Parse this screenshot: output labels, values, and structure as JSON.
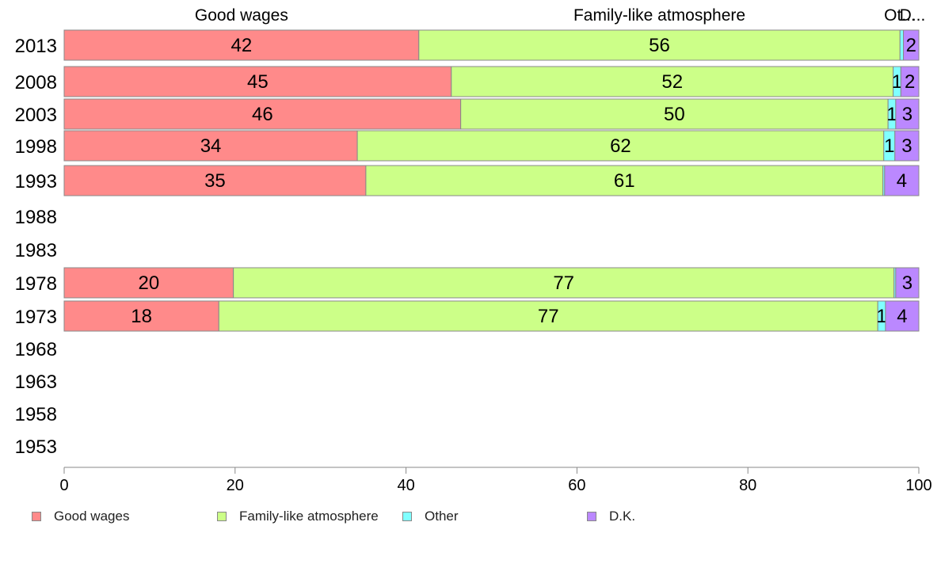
{
  "chart_data": {
    "type": "bar",
    "orientation": "horizontal",
    "stacked": true,
    "categories": [
      "2013",
      "2008",
      "2003",
      "1998",
      "1993",
      "1988",
      "1983",
      "1978",
      "1973",
      "1968",
      "1963",
      "1958",
      "1953"
    ],
    "series": [
      {
        "name": "Good wages",
        "color": "#ff8a8a",
        "values": [
          41.5,
          45.3,
          46.4,
          34.3,
          35.3,
          null,
          null,
          19.8,
          18.1,
          null,
          null,
          null,
          null
        ],
        "labels": [
          "42",
          "45",
          "46",
          "34",
          "35",
          "",
          "",
          "20",
          "18",
          "",
          "",
          "",
          ""
        ]
      },
      {
        "name": "Family-like atmosphere",
        "color": "#ccff88",
        "values": [
          56.3,
          51.7,
          50.0,
          61.6,
          60.5,
          null,
          null,
          77.3,
          77.1,
          null,
          null,
          null,
          null
        ],
        "labels": [
          "56",
          "52",
          "50",
          "62",
          "61",
          "",
          "",
          "77",
          "77",
          "",
          "",
          "",
          ""
        ]
      },
      {
        "name": "Other",
        "color": "#80ffff",
        "values": [
          0.4,
          0.9,
          0.9,
          1.3,
          0.2,
          null,
          null,
          0.2,
          0.9,
          null,
          null,
          null,
          null
        ],
        "labels": [
          "",
          "1",
          "1",
          "1",
          "",
          "",
          "",
          "",
          "1",
          "",
          "",
          "",
          ""
        ]
      },
      {
        "name": "D.K.",
        "color": "#bb88ff",
        "values": [
          1.8,
          2.1,
          2.7,
          2.8,
          4.0,
          null,
          null,
          2.7,
          3.9,
          null,
          null,
          null,
          null
        ],
        "labels": [
          "2",
          "2",
          "3",
          "3",
          "4",
          "",
          "",
          "3",
          "4",
          "",
          "",
          "",
          ""
        ]
      }
    ],
    "top_labels": [
      "Good wages",
      "Family-like atmosphere",
      "Ot...",
      "D..."
    ],
    "xlim": [
      0,
      100
    ],
    "xticks": [
      "0",
      "20",
      "40",
      "60",
      "80",
      "100"
    ],
    "grid": false,
    "legend_position": "bottom"
  }
}
